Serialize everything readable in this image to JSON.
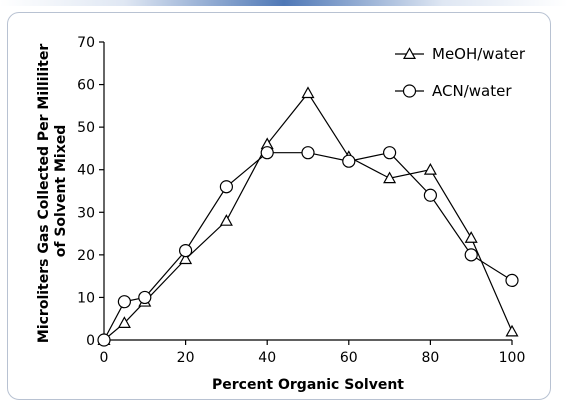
{
  "chart_data": {
    "type": "line",
    "xlabel": "Percent Organic Solvent",
    "ylabel_lines": [
      "Microliters Gas Collected Per Milliliter",
      "of Solvent Mixed"
    ],
    "xlim": [
      0,
      100
    ],
    "ylim": [
      0,
      70
    ],
    "xticks": [
      0,
      20,
      40,
      60,
      80,
      100
    ],
    "yticks": [
      0,
      10,
      20,
      30,
      40,
      50,
      60,
      70
    ],
    "grid": false,
    "legend_position": "top-right",
    "series": [
      {
        "name": "MeOH/water",
        "marker": "triangle",
        "x": [
          0,
          5,
          10,
          20,
          30,
          40,
          50,
          60,
          70,
          80,
          90,
          100
        ],
        "y": [
          0,
          4,
          9,
          19,
          28,
          46,
          58,
          43,
          38,
          40,
          24,
          2
        ]
      },
      {
        "name": "ACN/water",
        "marker": "circle",
        "x": [
          0,
          5,
          10,
          20,
          30,
          40,
          50,
          60,
          70,
          80,
          90,
          100
        ],
        "y": [
          0,
          9,
          10,
          21,
          36,
          44,
          44,
          42,
          44,
          34,
          20,
          14
        ]
      }
    ]
  }
}
